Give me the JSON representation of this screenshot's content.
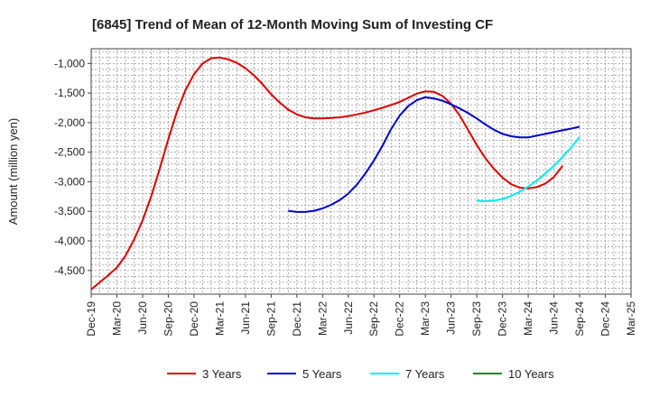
{
  "chart_data": {
    "type": "line",
    "title": "[6845]  Trend of Mean of 12-Month Moving Sum of Investing CF",
    "xlabel": "",
    "ylabel": "Amount (million yen)",
    "ylim": [
      -4900,
      -750
    ],
    "yticks": [
      -1000,
      -1500,
      -2000,
      -2500,
      -3000,
      -3500,
      -4000,
      -4500
    ],
    "ytick_labels": [
      "-1,000",
      "-1,500",
      "-2,000",
      "-2,500",
      "-3,000",
      "-3,500",
      "-4,000",
      "-4,500"
    ],
    "x_start": "Dec-19",
    "x_end": "Mar-25",
    "xticks": [
      "Dec-19",
      "Mar-20",
      "Jun-20",
      "Sep-20",
      "Dec-20",
      "Mar-21",
      "Jun-21",
      "Sep-21",
      "Dec-21",
      "Mar-22",
      "Jun-22",
      "Sep-22",
      "Dec-22",
      "Mar-23",
      "Jun-23",
      "Sep-23",
      "Dec-23",
      "Mar-24",
      "Jun-24",
      "Sep-24",
      "Dec-24",
      "Mar-25"
    ],
    "grid": true,
    "legend_position": "bottom",
    "series": [
      {
        "name": "3 Years",
        "color": "#dd0000",
        "start": "Dec-19",
        "values": [
          -4820,
          -4700,
          -4580,
          -4450,
          -4250,
          -3980,
          -3650,
          -3250,
          -2780,
          -2280,
          -1820,
          -1450,
          -1180,
          -1000,
          -910,
          -900,
          -930,
          -990,
          -1080,
          -1200,
          -1350,
          -1520,
          -1660,
          -1780,
          -1860,
          -1910,
          -1930,
          -1930,
          -1920,
          -1910,
          -1890,
          -1860,
          -1830,
          -1790,
          -1750,
          -1700,
          -1650,
          -1580,
          -1510,
          -1470,
          -1480,
          -1550,
          -1680,
          -1880,
          -2130,
          -2380,
          -2600,
          -2780,
          -2930,
          -3040,
          -3100,
          -3110,
          -3090,
          -3030,
          -2920,
          -2730
        ]
      },
      {
        "name": "5 Years",
        "color": "#0000cc",
        "start": "Nov-21",
        "values": [
          -3490,
          -3510,
          -3510,
          -3490,
          -3450,
          -3390,
          -3310,
          -3200,
          -3050,
          -2860,
          -2640,
          -2390,
          -2110,
          -1880,
          -1720,
          -1620,
          -1570,
          -1590,
          -1630,
          -1690,
          -1760,
          -1840,
          -1930,
          -2030,
          -2120,
          -2190,
          -2230,
          -2250,
          -2250,
          -2220,
          -2190,
          -2160,
          -2130,
          -2100,
          -2070
        ]
      },
      {
        "name": "7 Years",
        "color": "#00eeee",
        "start": "Sep-23",
        "values": [
          -3320,
          -3330,
          -3320,
          -3290,
          -3240,
          -3170,
          -3080,
          -2980,
          -2860,
          -2730,
          -2580,
          -2420,
          -2240
        ]
      },
      {
        "name": "10 Years",
        "color": "#228822",
        "start": "Sep-24",
        "values": []
      }
    ]
  }
}
